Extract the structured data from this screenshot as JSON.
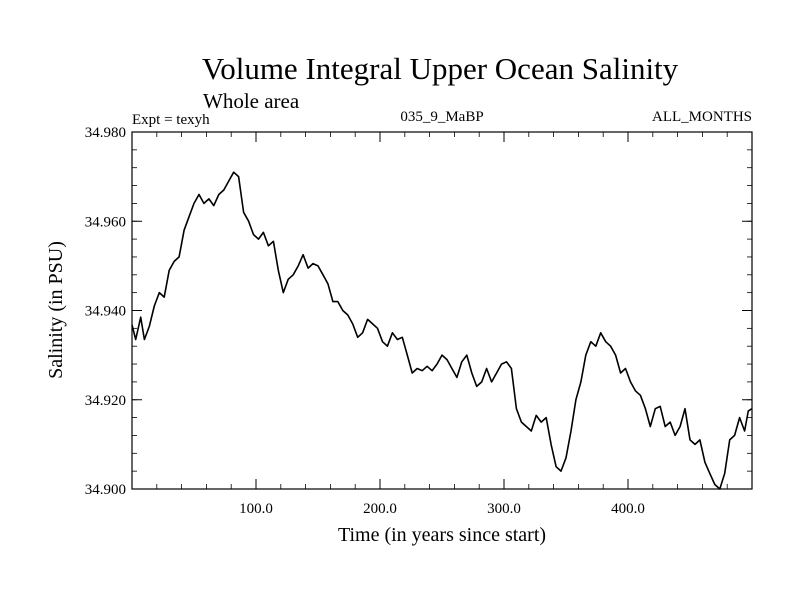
{
  "chart_data": {
    "type": "line",
    "title": "Volume Integral Upper Ocean Salinity",
    "subtitle": "Whole area",
    "experiment_label": "Expt = texyh",
    "run_label": "035_9_MaBP",
    "months_label": "ALL_MONTHS",
    "xlabel": "Time (in years since start)",
    "ylabel": "Salinity (in PSU)",
    "xlim": [
      0,
      500
    ],
    "ylim": [
      34.9,
      34.98
    ],
    "x_ticks": [
      100,
      200,
      300,
      400
    ],
    "x_tick_labels": [
      "100.0",
      "200.0",
      "300.0",
      "400.0"
    ],
    "y_ticks": [
      34.9,
      34.92,
      34.94,
      34.96,
      34.98
    ],
    "y_tick_labels": [
      "34.900",
      "34.920",
      "34.940",
      "34.960",
      "34.980"
    ],
    "grid": false,
    "series": [
      {
        "color": "#000000",
        "points": [
          [
            0,
            34.9368
          ],
          [
            3,
            34.9335
          ],
          [
            7,
            34.9385
          ],
          [
            10,
            34.9335
          ],
          [
            14,
            34.9365
          ],
          [
            18,
            34.941
          ],
          [
            22,
            34.944
          ],
          [
            26,
            34.943
          ],
          [
            30,
            34.949
          ],
          [
            34,
            34.951
          ],
          [
            38,
            34.952
          ],
          [
            42,
            34.958
          ],
          [
            46,
            34.961
          ],
          [
            50,
            34.964
          ],
          [
            54,
            34.966
          ],
          [
            58,
            34.964
          ],
          [
            62,
            34.965
          ],
          [
            66,
            34.9635
          ],
          [
            70,
            34.966
          ],
          [
            74,
            34.967
          ],
          [
            78,
            34.969
          ],
          [
            82,
            34.971
          ],
          [
            86,
            34.97
          ],
          [
            90,
            34.962
          ],
          [
            94,
            34.96
          ],
          [
            98,
            34.957
          ],
          [
            102,
            34.956
          ],
          [
            106,
            34.9575
          ],
          [
            110,
            34.9545
          ],
          [
            114,
            34.9555
          ],
          [
            118,
            34.949
          ],
          [
            122,
            34.944
          ],
          [
            126,
            34.947
          ],
          [
            130,
            34.948
          ],
          [
            134,
            34.95
          ],
          [
            138,
            34.9525
          ],
          [
            142,
            34.9495
          ],
          [
            146,
            34.9505
          ],
          [
            150,
            34.95
          ],
          [
            154,
            34.948
          ],
          [
            158,
            34.946
          ],
          [
            162,
            34.942
          ],
          [
            166,
            34.942
          ],
          [
            170,
            34.94
          ],
          [
            174,
            34.939
          ],
          [
            178,
            34.937
          ],
          [
            182,
            34.934
          ],
          [
            186,
            34.935
          ],
          [
            190,
            34.938
          ],
          [
            194,
            34.937
          ],
          [
            198,
            34.936
          ],
          [
            202,
            34.933
          ],
          [
            206,
            34.932
          ],
          [
            210,
            34.935
          ],
          [
            214,
            34.9335
          ],
          [
            218,
            34.934
          ],
          [
            222,
            34.93
          ],
          [
            226,
            34.926
          ],
          [
            230,
            34.927
          ],
          [
            234,
            34.9265
          ],
          [
            238,
            34.9275
          ],
          [
            242,
            34.9265
          ],
          [
            246,
            34.928
          ],
          [
            250,
            34.93
          ],
          [
            254,
            34.929
          ],
          [
            258,
            34.927
          ],
          [
            262,
            34.925
          ],
          [
            266,
            34.9285
          ],
          [
            270,
            34.93
          ],
          [
            274,
            34.926
          ],
          [
            278,
            34.923
          ],
          [
            282,
            34.924
          ],
          [
            286,
            34.927
          ],
          [
            290,
            34.924
          ],
          [
            294,
            34.926
          ],
          [
            298,
            34.928
          ],
          [
            302,
            34.9285
          ],
          [
            306,
            34.927
          ],
          [
            310,
            34.918
          ],
          [
            314,
            34.915
          ],
          [
            318,
            34.914
          ],
          [
            322,
            34.913
          ],
          [
            326,
            34.9165
          ],
          [
            330,
            34.915
          ],
          [
            334,
            34.916
          ],
          [
            338,
            34.91
          ],
          [
            342,
            34.905
          ],
          [
            346,
            34.904
          ],
          [
            350,
            34.907
          ],
          [
            354,
            34.913
          ],
          [
            358,
            34.92
          ],
          [
            362,
            34.924
          ],
          [
            366,
            34.93
          ],
          [
            370,
            34.933
          ],
          [
            374,
            34.932
          ],
          [
            378,
            34.935
          ],
          [
            382,
            34.933
          ],
          [
            386,
            34.932
          ],
          [
            390,
            34.93
          ],
          [
            394,
            34.926
          ],
          [
            398,
            34.927
          ],
          [
            402,
            34.924
          ],
          [
            406,
            34.922
          ],
          [
            410,
            34.921
          ],
          [
            414,
            34.918
          ],
          [
            418,
            34.914
          ],
          [
            422,
            34.918
          ],
          [
            426,
            34.9185
          ],
          [
            430,
            34.914
          ],
          [
            434,
            34.915
          ],
          [
            438,
            34.912
          ],
          [
            442,
            34.914
          ],
          [
            446,
            34.918
          ],
          [
            450,
            34.911
          ],
          [
            454,
            34.91
          ],
          [
            458,
            34.911
          ],
          [
            462,
            34.906
          ],
          [
            466,
            34.9035
          ],
          [
            470,
            34.901
          ],
          [
            474,
            34.9
          ],
          [
            478,
            34.9035
          ],
          [
            482,
            34.911
          ],
          [
            486,
            34.912
          ],
          [
            490,
            34.916
          ],
          [
            494,
            34.913
          ],
          [
            497,
            34.9175
          ],
          [
            500,
            34.918
          ]
        ]
      }
    ]
  }
}
